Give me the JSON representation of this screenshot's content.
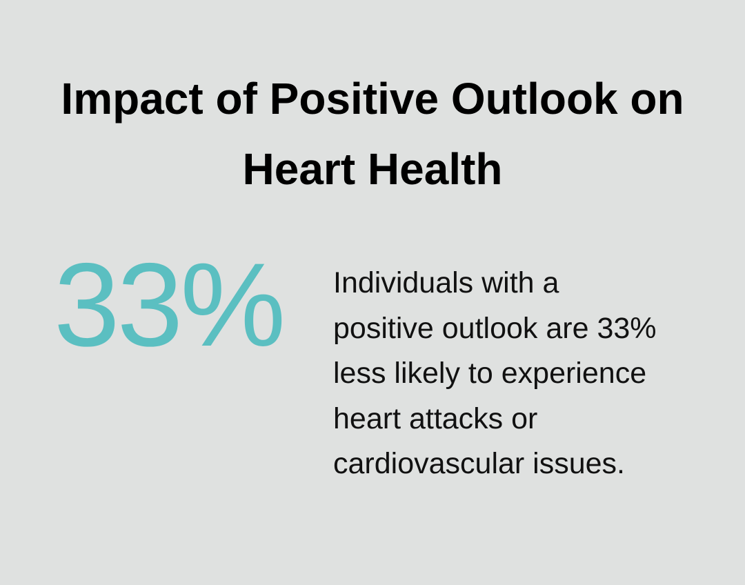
{
  "title": "Impact of Positive Outlook on Heart Health",
  "stat": {
    "value": "33%",
    "color": "#5bbfc1",
    "description": "Individuals with a positive outlook are 33% less likely to experience heart attacks or cardiovascular issues."
  },
  "colors": {
    "background": "#dfe1e0",
    "accent": "#5bbfc1"
  }
}
